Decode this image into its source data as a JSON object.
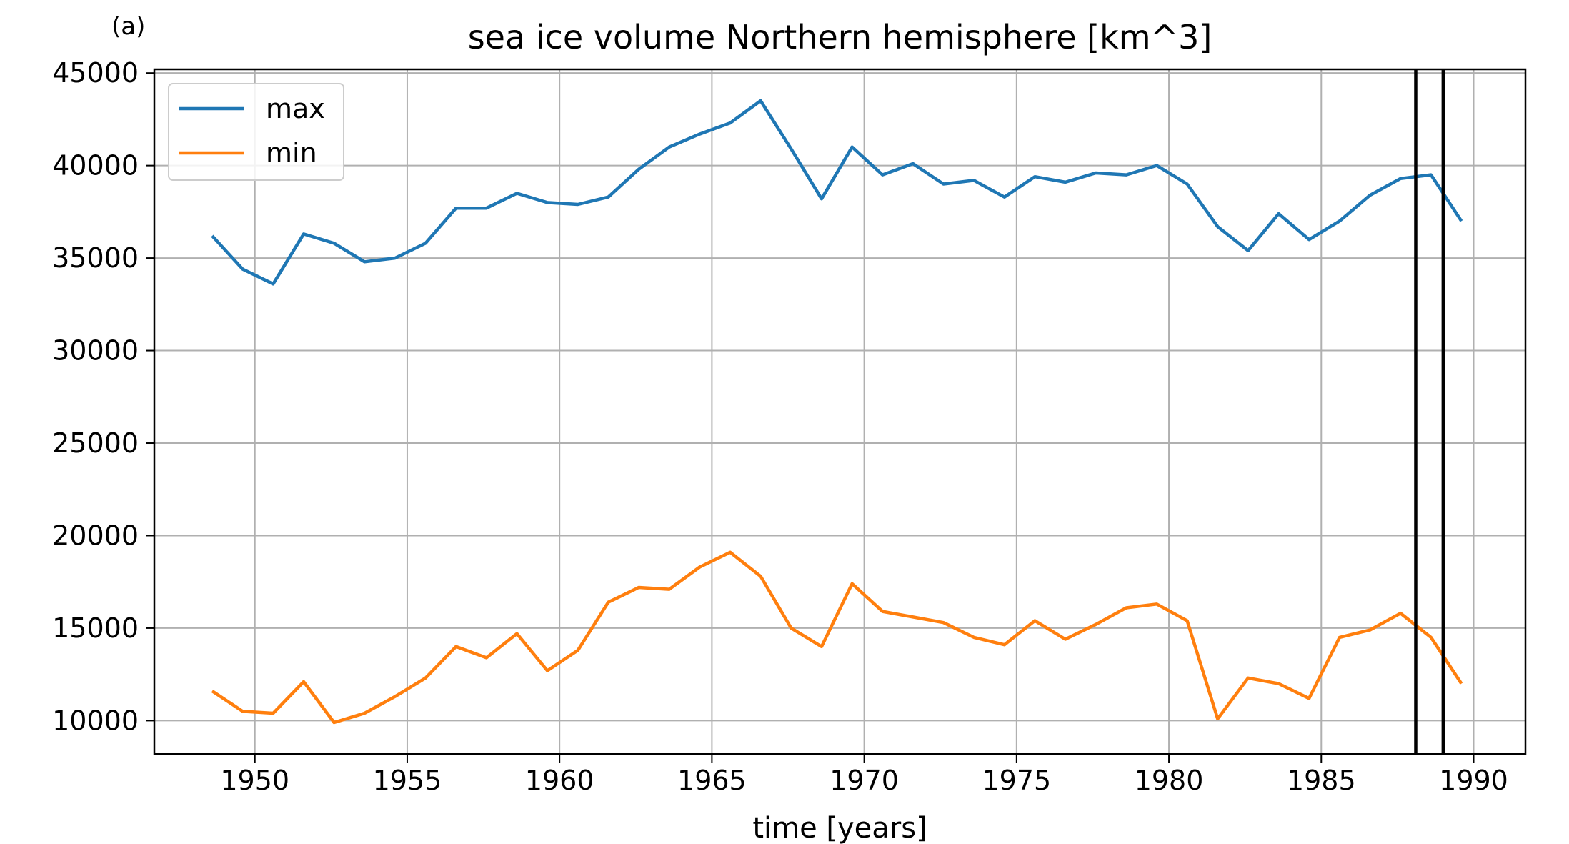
{
  "panel_label": "(a)",
  "chart_data": {
    "type": "line",
    "title": "sea ice volume Northern hemisphere [km^3]",
    "xlabel": "time [years]",
    "ylabel": "",
    "xlim": [
      1946.7,
      1991.7
    ],
    "ylim": [
      8200,
      45200
    ],
    "xticks": [
      1950,
      1955,
      1960,
      1965,
      1970,
      1975,
      1980,
      1985,
      1990
    ],
    "yticks": [
      10000,
      15000,
      20000,
      25000,
      30000,
      35000,
      40000,
      45000
    ],
    "grid": true,
    "legend_position": "upper-left",
    "x": [
      1948.6,
      1949.6,
      1950.6,
      1951.6,
      1952.6,
      1953.6,
      1954.6,
      1955.6,
      1956.6,
      1957.6,
      1958.6,
      1959.6,
      1960.6,
      1961.6,
      1962.6,
      1963.6,
      1964.6,
      1965.6,
      1966.6,
      1967.6,
      1968.6,
      1969.6,
      1970.6,
      1971.6,
      1972.6,
      1973.6,
      1974.6,
      1975.6,
      1976.6,
      1977.6,
      1978.6,
      1979.6,
      1980.6,
      1981.6,
      1982.6,
      1983.6,
      1984.6,
      1985.6,
      1986.6,
      1987.6,
      1988.6,
      1989.6
    ],
    "series": [
      {
        "name": "max",
        "color": "#1f77b4",
        "values": [
          36200,
          34400,
          33600,
          36300,
          35800,
          34800,
          35000,
          35800,
          37700,
          37700,
          38500,
          38000,
          37900,
          38300,
          39800,
          41000,
          41700,
          42300,
          43500,
          40900,
          38200,
          41000,
          39500,
          40100,
          39000,
          39200,
          38300,
          39400,
          39100,
          39600,
          39500,
          40000,
          39000,
          36700,
          35400,
          37400,
          36000,
          37000,
          38400,
          39300,
          39500,
          37000
        ]
      },
      {
        "name": "min",
        "color": "#ff7f0e",
        "values": [
          11600,
          10500,
          10400,
          12100,
          9900,
          10400,
          11300,
          12300,
          14000,
          13400,
          14700,
          12700,
          13800,
          16400,
          17200,
          17100,
          18300,
          19100,
          17800,
          15000,
          14000,
          17400,
          15900,
          15600,
          15300,
          14500,
          14100,
          15400,
          14400,
          15200,
          16100,
          16300,
          15400,
          10100,
          12300,
          12000,
          11200,
          14500,
          14900,
          15800,
          14500,
          12000
        ]
      }
    ],
    "vertical_lines": [
      1988.1,
      1989.0
    ]
  }
}
